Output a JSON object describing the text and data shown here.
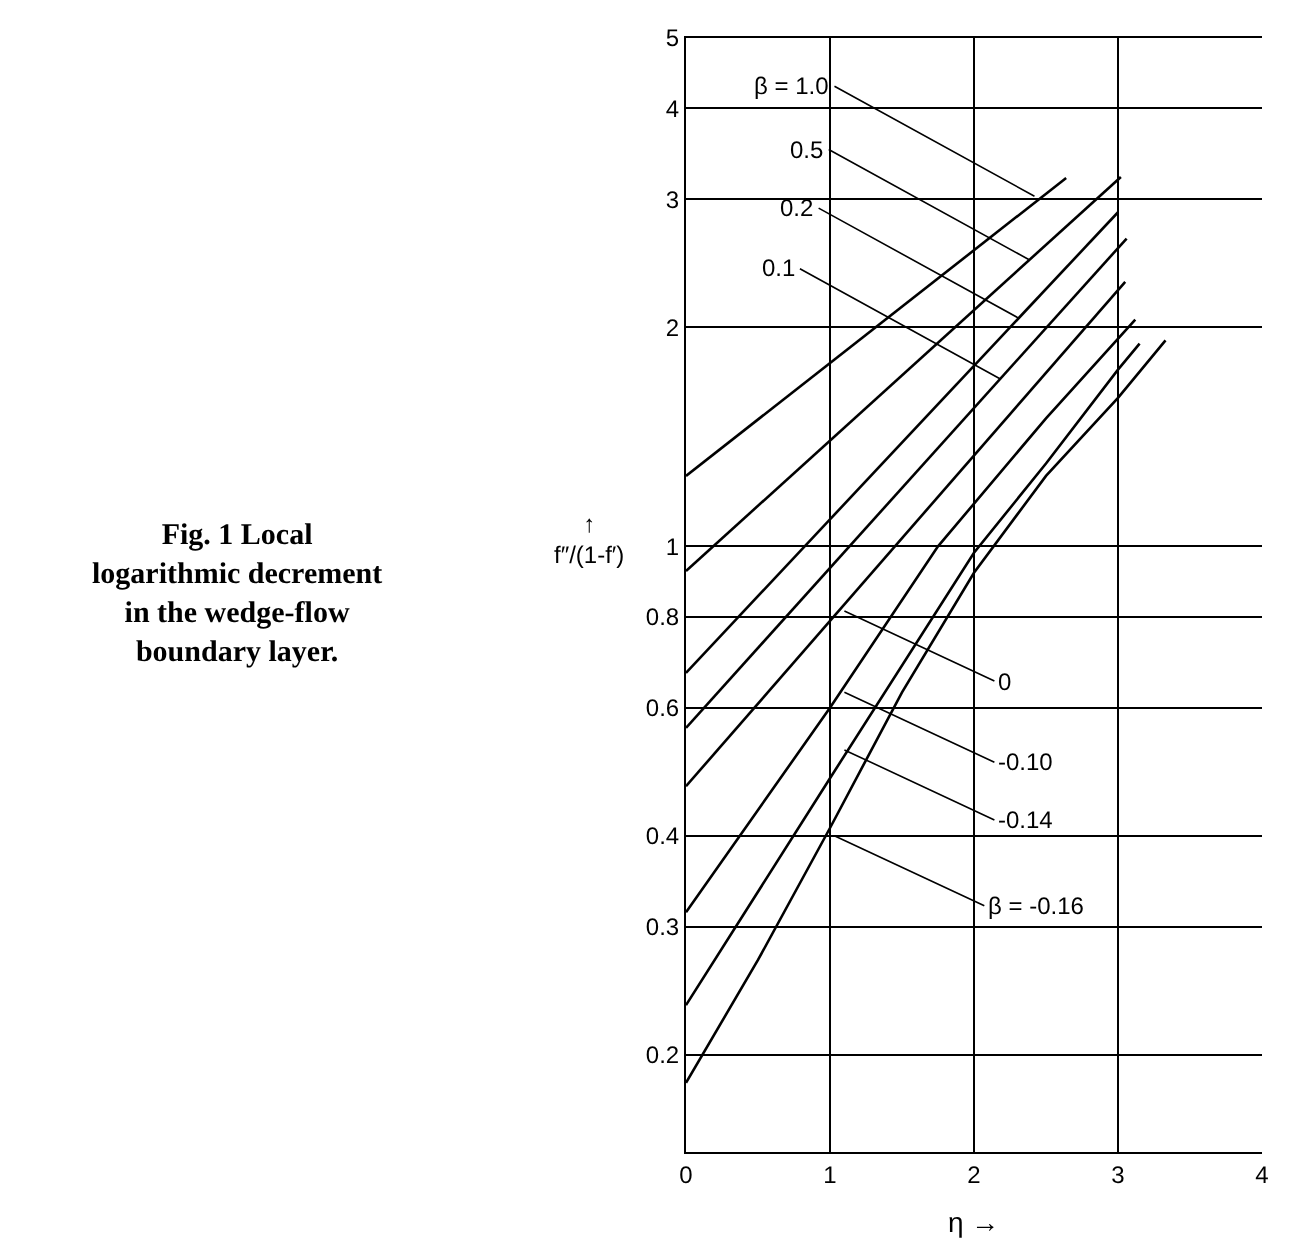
{
  "chart_data": {
    "type": "line",
    "title": "Fig. 1 Local logarithmic decrement in the wedge-flow boundary layer.",
    "xlabel": "η →",
    "ylabel": "↑ f″/(1-f′)",
    "series": [
      {
        "color": "#000000",
        "x": [
          0,
          2.64
        ],
        "values": [
          1.25,
          3.21
        ]
      },
      {
        "color": "#000000",
        "x": [
          0,
          3.02
        ],
        "values": [
          0.925,
          3.22
        ]
      },
      {
        "color": "#000000",
        "x": [
          0,
          3.0
        ],
        "values": [
          0.67,
          2.88
        ]
      },
      {
        "color": "#000000",
        "x": [
          0,
          3.06
        ],
        "values": [
          0.563,
          2.65
        ]
      },
      {
        "color": "#000000",
        "x": [
          0,
          3.05
        ],
        "values": [
          0.468,
          2.31
        ]
      },
      {
        "color": "#000000",
        "x": [
          0,
          1,
          1.75,
          2.5,
          3.12
        ],
        "values": [
          0.314,
          0.6,
          1.0,
          1.5,
          2.05
        ]
      },
      {
        "color": "#000000",
        "x": [
          0,
          1,
          2,
          2.5,
          3,
          3.15
        ],
        "values": [
          0.234,
          0.48,
          0.98,
          1.3,
          1.75,
          1.9
        ]
      },
      {
        "color": "#000000",
        "x": [
          0,
          0.5,
          1,
          1.5,
          2,
          2.5,
          3,
          3.33
        ],
        "values": [
          0.183,
          0.27,
          0.41,
          0.63,
          0.92,
          1.25,
          1.6,
          1.92
        ]
      }
    ],
    "annotations": [
      {
        "text": "β = 1.0",
        "x": 2.42,
        "y": 3.03
      },
      {
        "text": "0.5",
        "x": 2.38,
        "y": 2.48
      },
      {
        "text": "0.2",
        "x": 2.31,
        "y": 2.06
      },
      {
        "text": "0.1",
        "x": 2.18,
        "y": 1.7
      },
      {
        "text": "0",
        "x": 1.1,
        "y": 0.815
      },
      {
        "text": "-0.10",
        "x": 1.1,
        "y": 0.63
      },
      {
        "text": "-0.14",
        "x": 1.1,
        "y": 0.525
      },
      {
        "text": "β = -0.16",
        "x": 1.03,
        "y": 0.4
      }
    ],
    "xlim": [
      0,
      4
    ],
    "xticks": [
      0,
      1,
      2,
      3,
      4
    ],
    "ylim": [
      0.147,
      5
    ],
    "yticks": [
      0.2,
      0.3,
      0.4,
      0.6,
      0.8,
      1,
      2,
      3,
      4,
      5
    ],
    "log": "y",
    "grid": true,
    "marker": "none",
    "line_style": "solid"
  }
}
